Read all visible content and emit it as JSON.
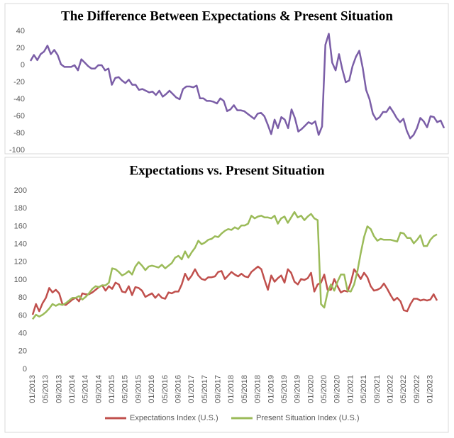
{
  "chart_data": [
    {
      "type": "line",
      "title": "The Difference Between Expectations & Present Situation",
      "ylim": [
        -100,
        40
      ],
      "yticks": [
        -100,
        -80,
        -60,
        -40,
        -20,
        0,
        20,
        40
      ],
      "grid": false,
      "series": [
        {
          "name": null,
          "color": "#7b5ea7",
          "values": [
            5,
            12,
            6,
            13,
            16,
            23,
            13,
            18,
            12,
            1,
            -2,
            -2,
            -2,
            0,
            -6,
            7,
            3,
            -1,
            -4,
            -4,
            0,
            0,
            -6,
            -4,
            -23,
            -15,
            -14,
            -18,
            -21,
            -17,
            -23,
            -23,
            -29,
            -28,
            -30,
            -32,
            -31,
            -35,
            -30,
            -37,
            -34,
            -30,
            -34,
            -38,
            -40,
            -28,
            -25,
            -25,
            -26,
            -24,
            -39,
            -39,
            -42,
            -42,
            -43,
            -45,
            -39,
            -42,
            -54,
            -52,
            -47,
            -53,
            -53,
            -54,
            -57,
            -60,
            -63,
            -57,
            -56,
            -60,
            -70,
            -81,
            -64,
            -74,
            -61,
            -64,
            -74,
            -52,
            -62,
            -78,
            -75,
            -71,
            -67,
            -69,
            -66,
            -82,
            -72,
            24,
            37,
            3,
            -6,
            13,
            -5,
            -20,
            -18,
            -1,
            10,
            17,
            -3,
            -29,
            -40,
            -57,
            -64,
            -61,
            -55,
            -55,
            -49,
            -55,
            -62,
            -67,
            -63,
            -77,
            -86,
            -82,
            -74,
            -62,
            -66,
            -73,
            -60,
            -61,
            -67,
            -65,
            -74
          ]
        }
      ]
    },
    {
      "type": "line",
      "title": "Expectations vs. Present Situation",
      "ylim": [
        0,
        200
      ],
      "yticks": [
        0,
        20,
        40,
        60,
        80,
        100,
        120,
        140,
        160,
        180,
        200
      ],
      "grid": false,
      "legend": "bottom",
      "categories": [
        "01/2013",
        null,
        null,
        null,
        "05/2013",
        null,
        null,
        null,
        "09/2013",
        null,
        null,
        null,
        "01/2014",
        null,
        null,
        null,
        "05/2014",
        null,
        null,
        null,
        "09/2014",
        null,
        null,
        null,
        "01/2015",
        null,
        null,
        null,
        "05/2015",
        null,
        null,
        null,
        "09/2015",
        null,
        null,
        null,
        "01/2016",
        null,
        null,
        null,
        "05/2016",
        null,
        null,
        null,
        "09/2016",
        null,
        null,
        null,
        "01/2017",
        null,
        null,
        null,
        "05/2017",
        null,
        null,
        null,
        "09/2017",
        null,
        null,
        null,
        "01/2018",
        null,
        null,
        null,
        "05/2018",
        null,
        null,
        null,
        "09/2018",
        null,
        null,
        null,
        "01/2019",
        null,
        null,
        null,
        "05/2019",
        null,
        null,
        null,
        "09/2019",
        null,
        null,
        null,
        "01/2020",
        null,
        null,
        null,
        "05/2020",
        null,
        null,
        null,
        "09/2020",
        null,
        null,
        null,
        "01/2021",
        null,
        null,
        null,
        "05/2021",
        null,
        null,
        null,
        "09/2021",
        null,
        null,
        null,
        "01/2022",
        null,
        null,
        null,
        "05/2022",
        null,
        null,
        null,
        "09/2022",
        null,
        null,
        null,
        "01/2023",
        null,
        null
      ],
      "series": [
        {
          "name": "Expectations Index (U.S.)",
          "color": "#c0504d",
          "values": [
            61,
            73,
            65,
            74,
            80,
            91,
            86,
            89,
            85,
            73,
            72,
            75,
            78,
            80,
            76,
            85,
            84,
            84,
            86,
            89,
            92,
            94,
            88,
            93,
            90,
            97,
            95,
            87,
            86,
            93,
            83,
            92,
            91,
            88,
            81,
            83,
            85,
            80,
            84,
            80,
            79,
            86,
            85,
            87,
            87,
            95,
            107,
            100,
            105,
            112,
            105,
            101,
            100,
            103,
            103,
            104,
            109,
            110,
            101,
            105,
            109,
            106,
            104,
            107,
            104,
            103,
            109,
            112,
            115,
            112,
            100,
            89,
            105,
            98,
            102,
            105,
            97,
            112,
            108,
            98,
            95,
            101,
            100,
            102,
            108,
            87,
            95,
            97,
            106,
            89,
            89,
            101,
            93,
            86,
            88,
            87,
            97,
            112,
            107,
            101,
            108,
            103,
            93,
            88,
            89,
            91,
            96,
            90,
            83,
            77,
            80,
            76,
            66,
            65,
            73,
            79,
            79,
            77,
            78,
            77,
            78,
            84,
            77
          ]
        },
        {
          "name": "Present Situation Index (U.S.)",
          "color": "#9bbb59",
          "values": [
            56,
            61,
            59,
            61,
            64,
            68,
            73,
            71,
            73,
            72,
            74,
            77,
            80,
            80,
            82,
            78,
            81,
            85,
            90,
            93,
            92,
            94,
            94,
            97,
            113,
            112,
            109,
            105,
            107,
            110,
            106,
            115,
            120,
            116,
            111,
            115,
            116,
            115,
            114,
            117,
            113,
            116,
            119,
            125,
            127,
            123,
            132,
            125,
            131,
            136,
            144,
            140,
            142,
            145,
            146,
            149,
            148,
            152,
            155,
            157,
            156,
            159,
            157,
            161,
            161,
            163,
            172,
            169,
            171,
            172,
            170,
            170,
            169,
            172,
            163,
            169,
            171,
            164,
            170,
            176,
            170,
            172,
            167,
            171,
            174,
            169,
            167,
            73,
            69,
            86,
            95,
            88,
            98,
            106,
            106,
            88,
            87,
            95,
            110,
            130,
            148,
            160,
            157,
            149,
            144,
            146,
            145,
            145,
            145,
            144,
            143,
            153,
            152,
            147,
            147,
            141,
            145,
            150,
            138,
            138,
            145,
            149,
            151
          ]
        }
      ]
    }
  ]
}
